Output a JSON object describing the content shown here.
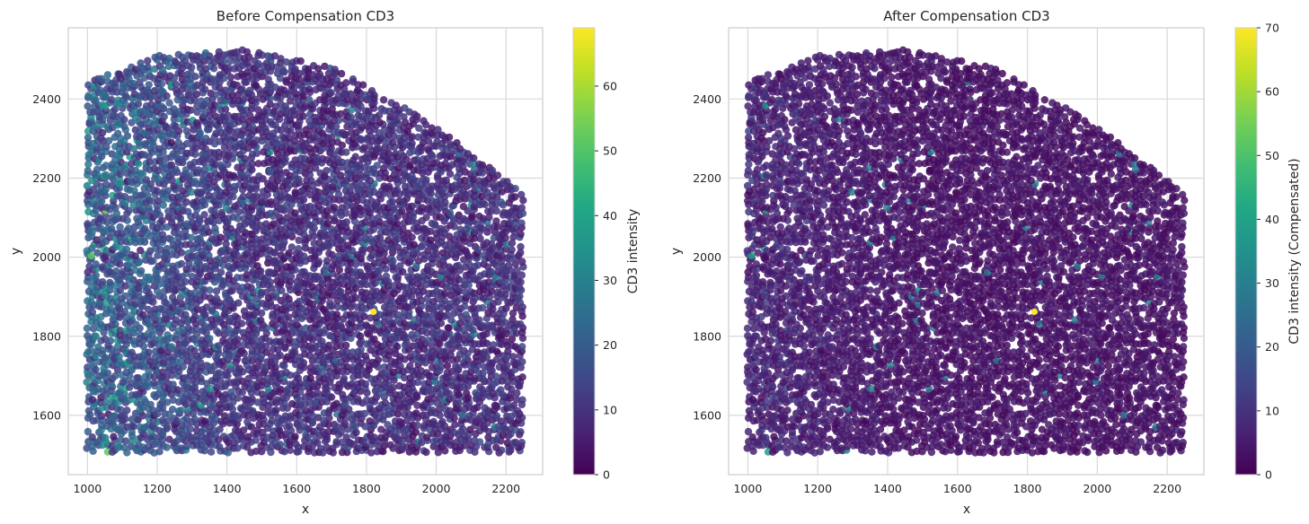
{
  "chart_data": [
    {
      "type": "scatter",
      "title": "Before Compensation CD3",
      "xlabel": "x",
      "ylabel": "y",
      "xlim": [
        945,
        2305
      ],
      "ylim": [
        1450,
        2580
      ],
      "xticks": [
        1000,
        1200,
        1400,
        1600,
        1800,
        2000,
        2200
      ],
      "yticks": [
        1600,
        1800,
        2000,
        2200,
        2400
      ],
      "grid": true,
      "colormap": "viridis",
      "colorbar": {
        "label": "CD3 intensity",
        "range": [
          0,
          69
        ],
        "ticks": [
          0,
          10,
          20,
          30,
          40,
          50,
          60
        ]
      },
      "hotspot": {
        "x": 1820,
        "y": 1862,
        "value": 69
      },
      "point_region": {
        "x_range": [
          1000,
          2250
        ],
        "y_range": [
          1505,
          2525
        ]
      }
    },
    {
      "type": "scatter",
      "title": "After Compensation CD3",
      "xlabel": "x",
      "ylabel": "y",
      "xlim": [
        945,
        2305
      ],
      "ylim": [
        1450,
        2580
      ],
      "xticks": [
        1000,
        1200,
        1400,
        1600,
        1800,
        2000,
        2200
      ],
      "yticks": [
        1600,
        1800,
        2000,
        2200,
        2400
      ],
      "grid": true,
      "colormap": "viridis",
      "colorbar": {
        "label": "CD3 intensity (Compensated)",
        "range": [
          0,
          70
        ],
        "ticks": [
          0,
          10,
          20,
          30,
          40,
          50,
          60,
          70
        ]
      },
      "hotspot": {
        "x": 1820,
        "y": 1862,
        "value": 70
      },
      "point_region": {
        "x_range": [
          1000,
          2250
        ],
        "y_range": [
          1505,
          2525
        ]
      }
    }
  ]
}
